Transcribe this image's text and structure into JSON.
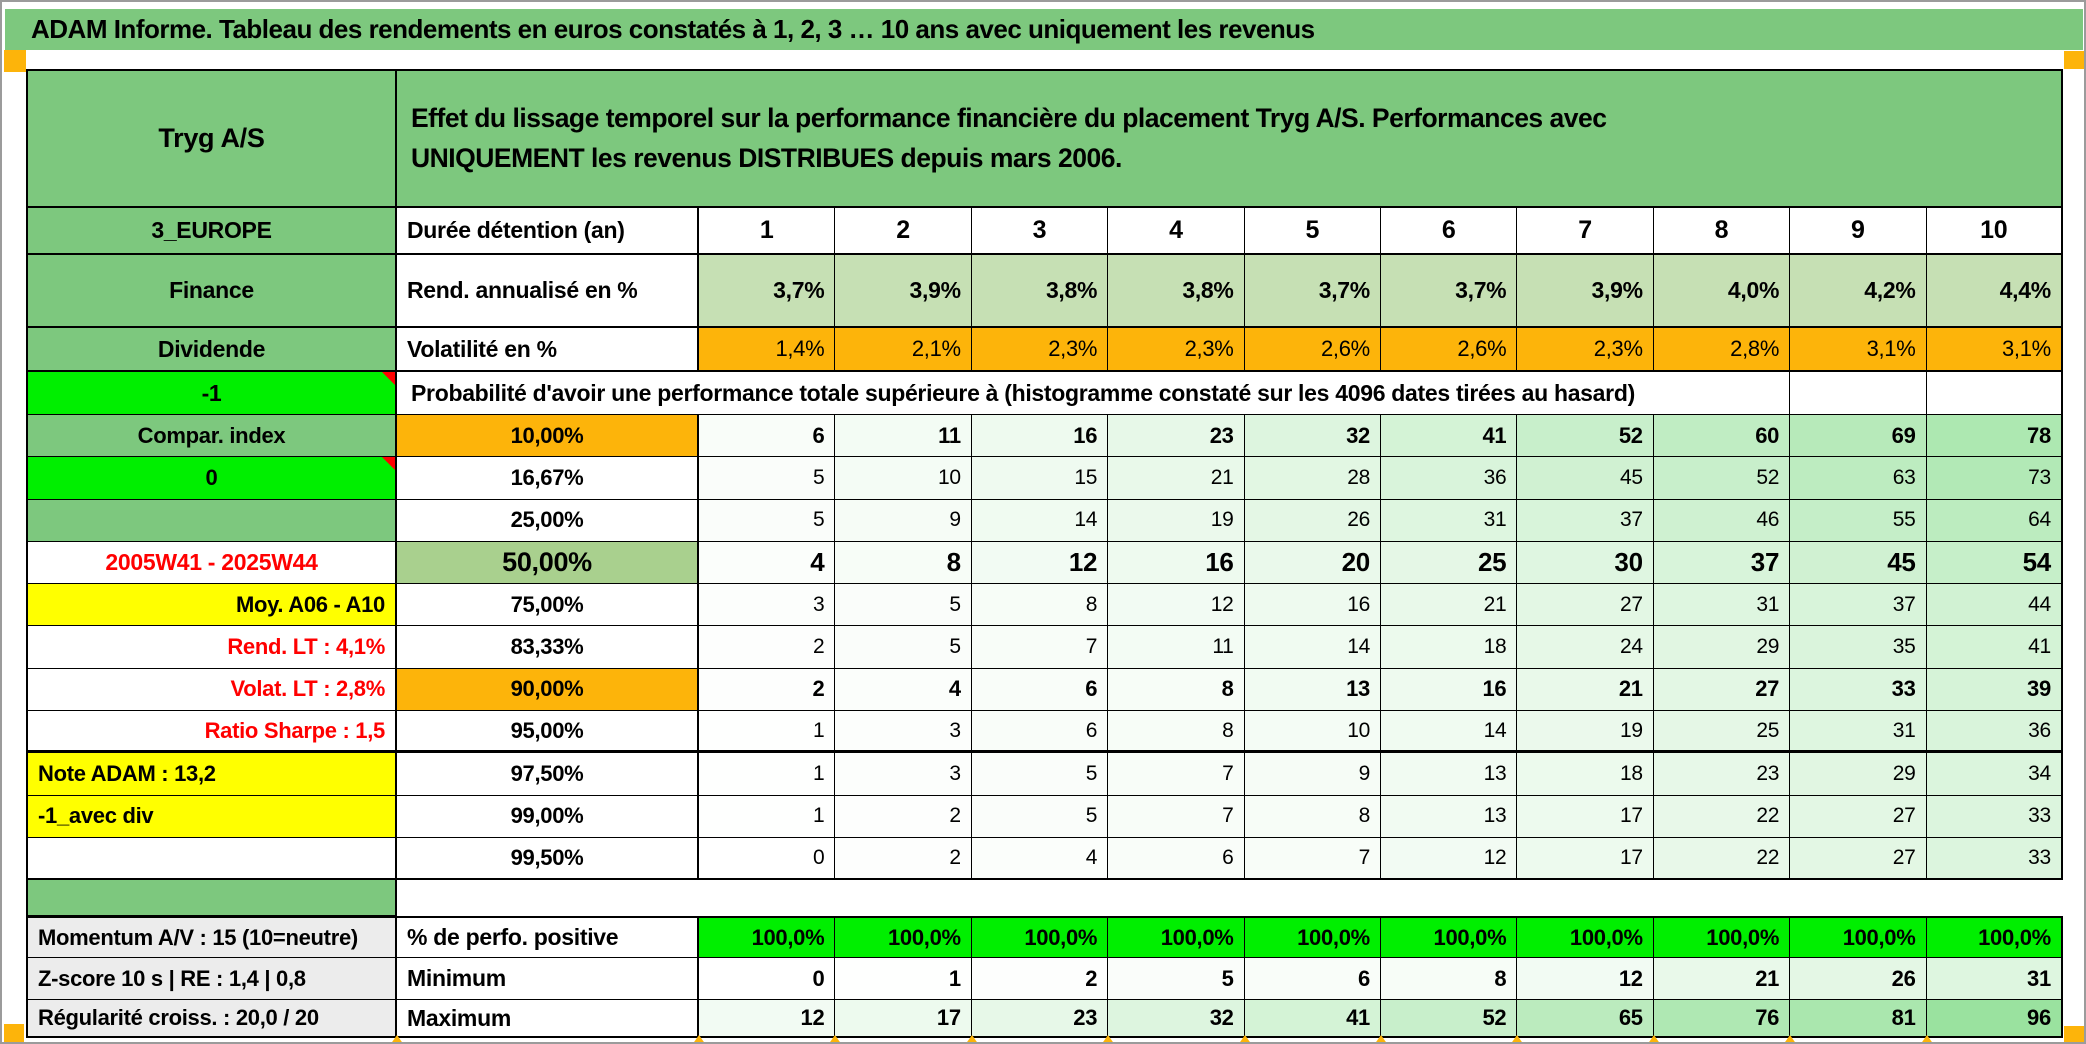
{
  "window": {
    "title_bar": "ADAM Informe. Tableau des rendements en euros constatés à 1, 2, 3 … 10 ans avec uniquement les revenus"
  },
  "header": {
    "instrument": "Tryg A/S",
    "description": "Effet du lissage temporel sur la performance financière du placement Tryg A/S. Performances avec UNIQUEMENT les revenus DISTRIBUES depuis mars 2006.",
    "region": "3_EUROPE",
    "sector": "Finance",
    "category": "Dividende"
  },
  "duration": {
    "label": "Durée détention (an)",
    "years": [
      "1",
      "2",
      "3",
      "4",
      "5",
      "6",
      "7",
      "8",
      "9",
      "10"
    ]
  },
  "annual_return": {
    "label": "Rend. annualisé en %",
    "values": [
      "3,7%",
      "3,9%",
      "3,8%",
      "3,8%",
      "3,7%",
      "3,7%",
      "3,9%",
      "4,0%",
      "4,2%",
      "4,4%"
    ]
  },
  "volatility": {
    "label": "Volatilité en %",
    "values": [
      "1,4%",
      "2,1%",
      "2,3%",
      "2,3%",
      "2,6%",
      "2,6%",
      "2,3%",
      "2,8%",
      "3,1%",
      "3,1%"
    ]
  },
  "probability_section": {
    "corner_label": "-1",
    "header": "Probabilité d'avoir une performance totale supérieure à (histogramme constaté sur les 4096 dates tirées au hasard)",
    "rows": [
      {
        "left": "Compar. index",
        "left_style": "green",
        "marker": false,
        "threshold": "10,00%",
        "threshold_style": "orange",
        "bold": true,
        "values_pct": [
          6,
          11,
          16,
          23,
          32,
          41,
          52,
          60,
          69,
          78
        ]
      },
      {
        "left": "0",
        "left_style": "bright-green",
        "marker": true,
        "threshold": "16,67%",
        "threshold_style": "white",
        "bold": false,
        "values_pct": [
          5,
          10,
          15,
          21,
          28,
          36,
          45,
          52,
          63,
          73
        ]
      },
      {
        "left": "",
        "left_style": "green",
        "marker": false,
        "threshold": "25,00%",
        "threshold_style": "white",
        "bold": false,
        "values_pct": [
          5,
          9,
          14,
          19,
          26,
          31,
          37,
          46,
          55,
          64
        ]
      },
      {
        "left": "2005W41 - 2025W44",
        "left_style": "red-center",
        "marker": false,
        "threshold": "50,00%",
        "threshold_style": "green-large",
        "bold": true,
        "values_pct": [
          4,
          8,
          12,
          16,
          20,
          25,
          30,
          37,
          45,
          54
        ]
      },
      {
        "left": "Moy. A06 - A10",
        "left_style": "yellow-right",
        "marker": false,
        "threshold": "75,00%",
        "threshold_style": "white",
        "bold": false,
        "values_pct": [
          3,
          5,
          8,
          12,
          16,
          21,
          27,
          31,
          37,
          44
        ]
      },
      {
        "left": "Rend. LT :  4,1%",
        "left_style": "red-right",
        "marker": false,
        "threshold": "83,33%",
        "threshold_style": "white",
        "bold": false,
        "values_pct": [
          2,
          5,
          7,
          11,
          14,
          18,
          24,
          29,
          35,
          41
        ]
      },
      {
        "left": "Volat. LT :  2,8%",
        "left_style": "red-right",
        "marker": false,
        "threshold": "90,00%",
        "threshold_style": "orange",
        "bold": true,
        "values_pct": [
          2,
          4,
          6,
          8,
          13,
          16,
          21,
          27,
          33,
          39
        ]
      },
      {
        "left": "Ratio Sharpe :  1,5",
        "left_style": "red-right",
        "marker": false,
        "threshold": "95,00%",
        "threshold_style": "white",
        "bold": false,
        "values_pct": [
          1,
          3,
          6,
          8,
          10,
          14,
          19,
          25,
          31,
          36
        ]
      },
      {
        "left": "Note ADAM : 13,2",
        "left_style": "yellow-left",
        "marker": false,
        "threshold": "97,50%",
        "threshold_style": "white",
        "bold": false,
        "values_pct": [
          1,
          3,
          5,
          7,
          9,
          13,
          18,
          23,
          29,
          34
        ]
      },
      {
        "left": "-1_avec div",
        "left_style": "yellow-left",
        "marker": false,
        "threshold": "99,00%",
        "threshold_style": "white",
        "bold": false,
        "values_pct": [
          1,
          2,
          5,
          7,
          8,
          13,
          17,
          22,
          27,
          33
        ]
      },
      {
        "left": "",
        "left_style": "white",
        "marker": false,
        "threshold": "99,50%",
        "threshold_style": "white",
        "bold": false,
        "values_pct": [
          0,
          2,
          4,
          6,
          7,
          12,
          17,
          22,
          27,
          33
        ]
      }
    ]
  },
  "bottom_section": {
    "rows": [
      {
        "left": "Momentum A/V : 15 (10=neutre)",
        "label": "% de perfo. positive",
        "style": "bright-green",
        "values": [
          "100,0%",
          "100,0%",
          "100,0%",
          "100,0%",
          "100,0%",
          "100,0%",
          "100,0%",
          "100,0%",
          "100,0%",
          "100,0%"
        ]
      },
      {
        "left": "Z-score 10 s | RE : 1,4 | 0,8",
        "label": "Minimum",
        "style": "scale",
        "values_pct": [
          0,
          1,
          2,
          5,
          6,
          8,
          12,
          21,
          26,
          31
        ]
      },
      {
        "left": "Régularité croiss. : 20,0 / 20",
        "label": "Maximum",
        "style": "scale",
        "values_pct": [
          12,
          17,
          23,
          32,
          41,
          52,
          65,
          76,
          81,
          96
        ]
      }
    ]
  },
  "colors": {
    "header_green": "#7dc87e",
    "muted_green": "#a9d08e",
    "light_green_row": "#c6e0b4",
    "bright_green": "#00ef00",
    "orange": "#fdb40a",
    "yellow": "#ffff00",
    "gray_label": "#ececec",
    "red_text": "#ff0000",
    "scale_green_max": "#96e09e",
    "grid_line": "#000000"
  }
}
